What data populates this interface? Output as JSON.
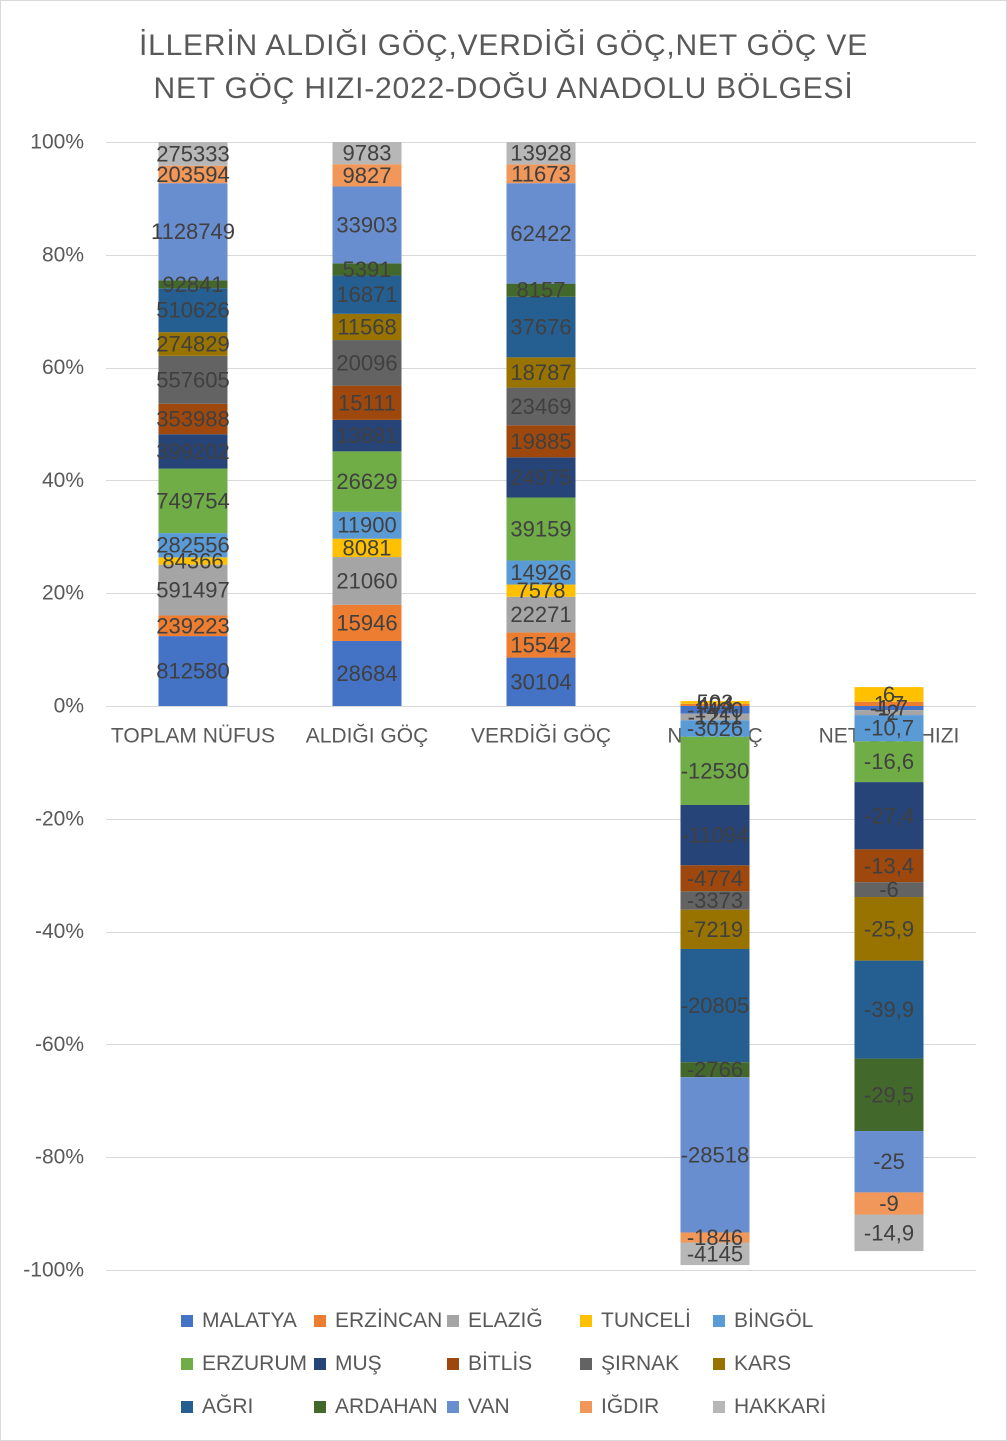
{
  "chart_data": {
    "type": "bar",
    "stacking": "percent",
    "title": [
      "İLLERİN ALDIĞI GÖÇ,VERDİĞİ GÖÇ,NET GÖÇ VE",
      "NET GÖÇ HIZI-2022-DOĞU ANADOLU BÖLGESİ"
    ],
    "categories": [
      "TOPLAM NÜFUS",
      "ALDIĞI GÖÇ",
      "VERDİĞİ GÖÇ",
      "NET GÖÇ",
      "NET GÖÇ HIZI"
    ],
    "series": [
      {
        "name": "MALATYA",
        "color": "#4472C4",
        "values": [
          812580,
          28684,
          30104,
          -1420,
          -1.7
        ]
      },
      {
        "name": "ERZİNCAN",
        "color": "#ED7D31",
        "values": [
          239223,
          15946,
          15542,
          404,
          1.7
        ]
      },
      {
        "name": "ELAZIĞ",
        "color": "#A5A5A5",
        "values": [
          591497,
          21060,
          22271,
          -1211,
          -2
        ]
      },
      {
        "name": "TUNCELİ",
        "color": "#FFC000",
        "values": [
          84366,
          8081,
          7578,
          503,
          6
        ]
      },
      {
        "name": "BİNGÖL",
        "color": "#5B9BD5",
        "values": [
          282556,
          11900,
          14926,
          -3026,
          -10.7
        ]
      },
      {
        "name": "ERZURUM",
        "color": "#70AD47",
        "values": [
          749754,
          26629,
          39159,
          -12530,
          -16.6
        ]
      },
      {
        "name": "MUŞ",
        "color": "#264478",
        "values": [
          399202,
          13881,
          24975,
          -11094,
          -27.4
        ]
      },
      {
        "name": "BİTLİS",
        "color": "#9E480E",
        "values": [
          353988,
          15111,
          19885,
          -4774,
          -13.4
        ]
      },
      {
        "name": "ŞIRNAK",
        "color": "#636363",
        "values": [
          557605,
          20096,
          23469,
          -3373,
          -6
        ]
      },
      {
        "name": "KARS",
        "color": "#997300",
        "values": [
          274829,
          11568,
          18787,
          -7219,
          -25.9
        ]
      },
      {
        "name": "AĞRI",
        "color": "#255E91",
        "values": [
          510626,
          16871,
          37676,
          -20805,
          -39.9
        ]
      },
      {
        "name": "ARDAHAN",
        "color": "#43682B",
        "values": [
          92841,
          5391,
          8157,
          -2766,
          -29.5
        ]
      },
      {
        "name": "VAN",
        "color": "#698ED0",
        "values": [
          1128749,
          33903,
          62422,
          -28518,
          -25
        ]
      },
      {
        "name": "IĞDIR",
        "color": "#F1975A",
        "values": [
          203594,
          9827,
          11673,
          -1846,
          -9
        ]
      },
      {
        "name": "HAKKARİ",
        "color": "#B7B7B7",
        "values": [
          275333,
          9783,
          13928,
          -4145,
          -14.9
        ]
      }
    ],
    "ylim": [
      -100,
      100
    ],
    "yticks": [
      100,
      80,
      60,
      40,
      20,
      0,
      -20,
      -40,
      -60,
      -80,
      -100
    ],
    "ytick_labels": [
      "100%",
      "80%",
      "60%",
      "40%",
      "20%",
      "0%",
      "-20%",
      "-40%",
      "-60%",
      "-80%",
      "-100%"
    ],
    "grid": true,
    "legend": "bottom"
  }
}
